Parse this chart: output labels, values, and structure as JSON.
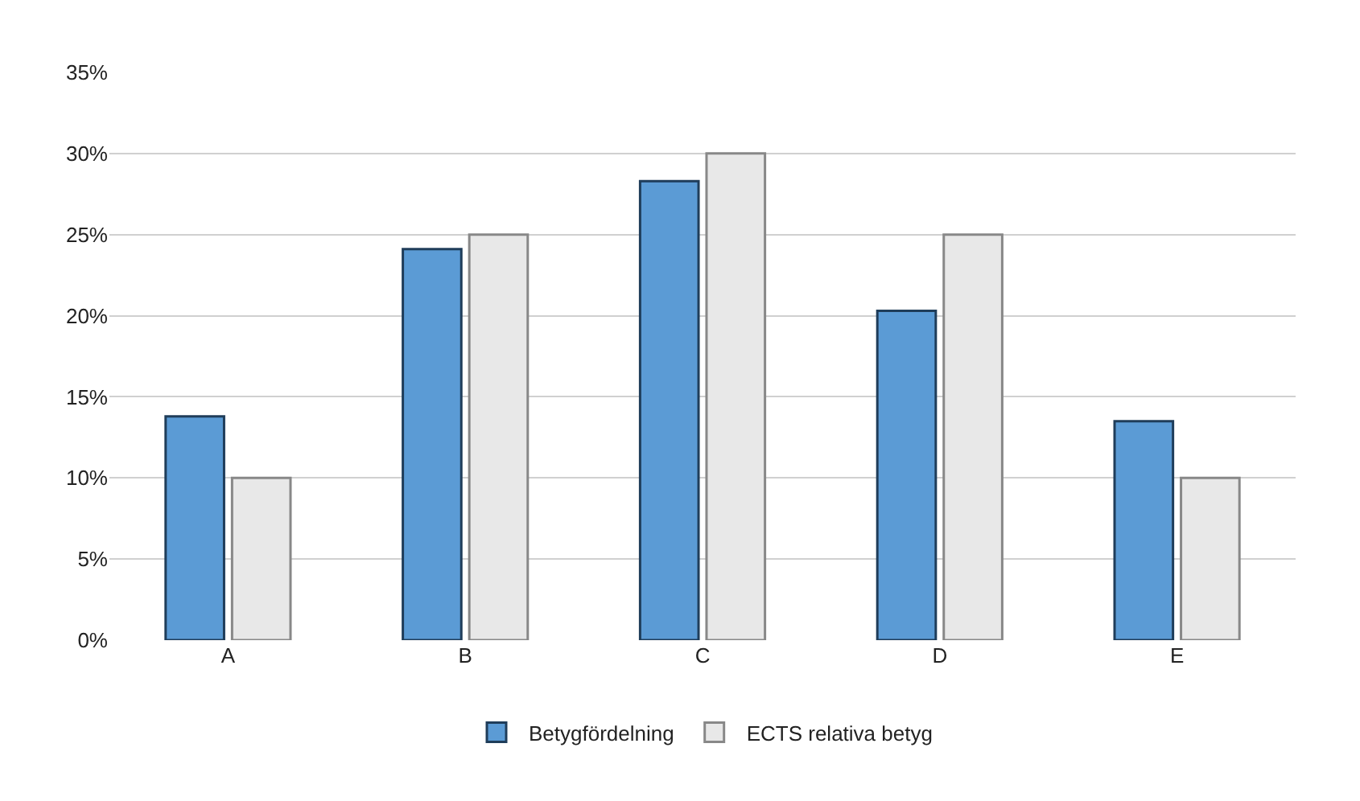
{
  "chart_data": {
    "type": "bar",
    "categories": [
      "A",
      "B",
      "C",
      "D",
      "E"
    ],
    "series": [
      {
        "name": "Betygfördelning",
        "color": "#5b9bd5",
        "values": [
          13.8,
          24.1,
          28.3,
          20.3,
          13.5
        ]
      },
      {
        "name": "ECTS relativa betyg",
        "color": "#e8e8e8",
        "values": [
          10,
          25,
          30,
          25,
          10
        ]
      }
    ],
    "ylim": [
      0,
      35
    ],
    "yticks": [
      {
        "value": 0,
        "label": "0%"
      },
      {
        "value": 5,
        "label": "5%"
      },
      {
        "value": 10,
        "label": "10%"
      },
      {
        "value": 15,
        "label": "15%"
      },
      {
        "value": 20,
        "label": "20%"
      },
      {
        "value": 25,
        "label": "25%"
      },
      {
        "value": 30,
        "label": "30%"
      },
      {
        "value": 35,
        "label": "35%"
      }
    ],
    "grid": "y",
    "legend": "bottom"
  }
}
